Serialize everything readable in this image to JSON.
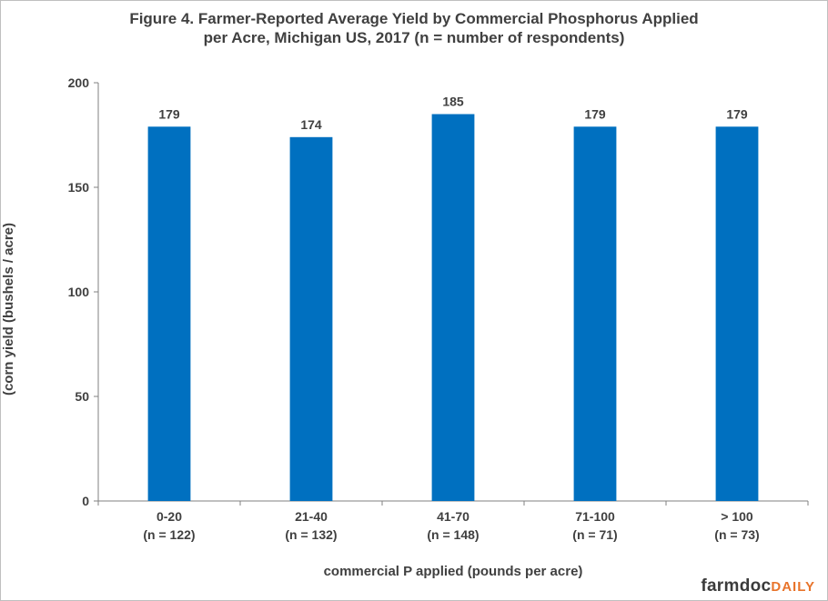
{
  "chart_data": {
    "type": "bar",
    "title_lines": [
      "Figure 4.  Farmer-Reported Average Yield by Commercial Phosphorus  Applied",
      "per Acre, Michigan US,  2017 (n = number of respondents)"
    ],
    "xlabel": "commercial P applied (pounds per acre)",
    "ylabel": "(corn yield (bushels / acre)",
    "categories": [
      "0-20",
      "21-40",
      "41-70",
      "71-100",
      "> 100"
    ],
    "category_notes": [
      "(n = 122)",
      "(n = 132)",
      "(n = 148)",
      "(n = 71)",
      "(n = 73)"
    ],
    "values": [
      179,
      174,
      185,
      179,
      179
    ],
    "data_labels": [
      "179",
      "174",
      "185",
      "179",
      "179"
    ],
    "ylim": [
      0,
      200
    ],
    "yticks": [
      0,
      50,
      100,
      150,
      200
    ],
    "bar_color": "#0070c0",
    "grid": false,
    "legend": "none"
  },
  "branding": {
    "logo_main": "farmdoc",
    "logo_accent": "DAILY"
  }
}
